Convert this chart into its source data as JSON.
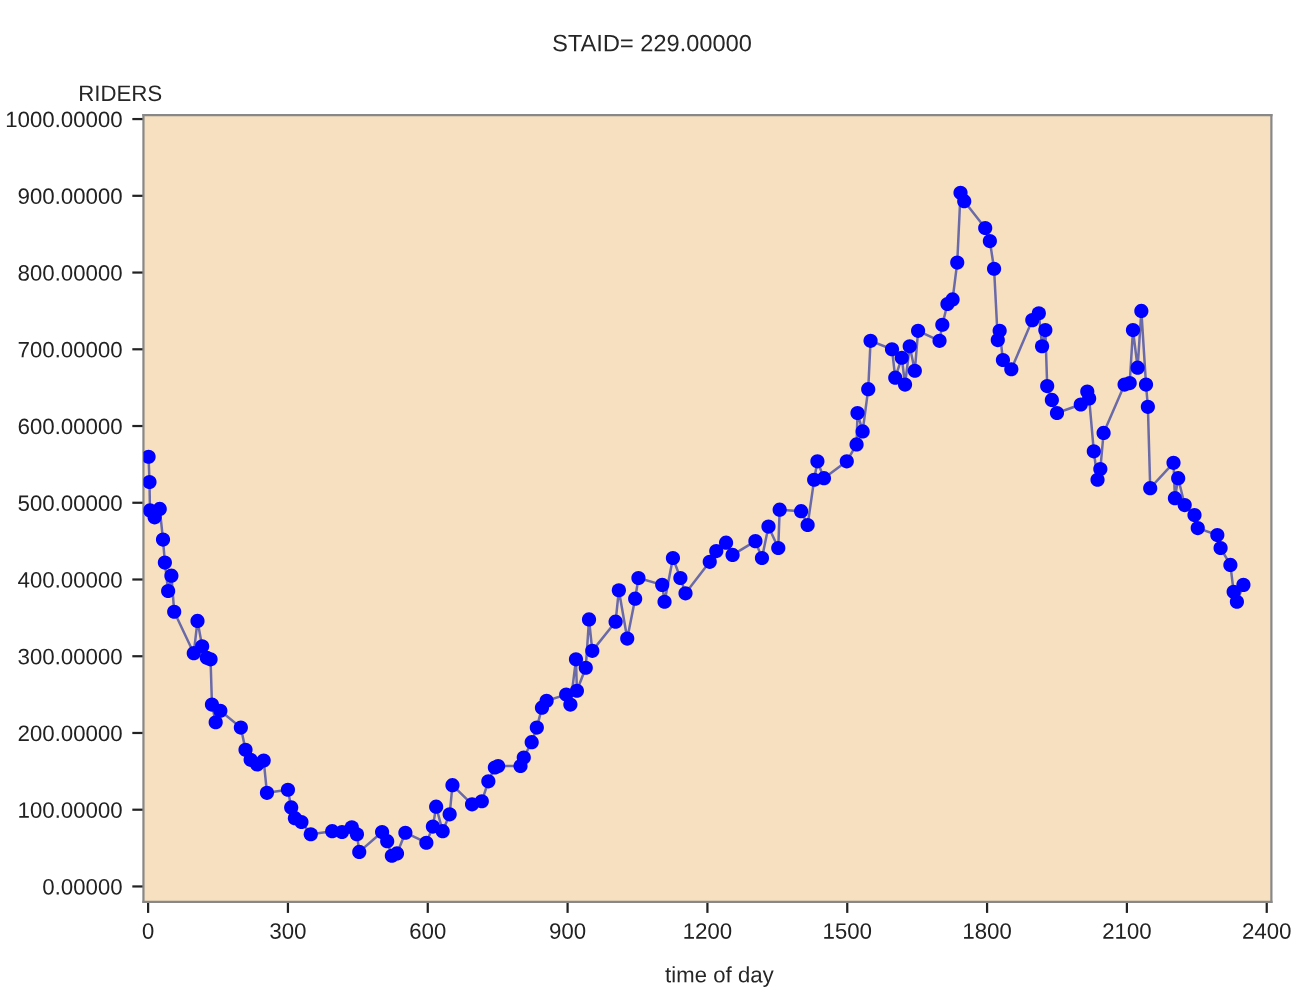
{
  "chart_data": {
    "type": "line",
    "title": "STAID= 229.00000",
    "xlabel": "time of day",
    "ylabel": "RIDERS",
    "marker": "circle",
    "line_style": "solid",
    "grid": false,
    "legend": false,
    "xlim": [
      -10,
      2410
    ],
    "ylim": [
      -20,
      1005
    ],
    "xticks": [
      0,
      300,
      600,
      900,
      1200,
      1500,
      1800,
      2100,
      2400
    ],
    "yticks": [
      {
        "value": 0,
        "label": "0.00000"
      },
      {
        "value": 100,
        "label": "100.00000"
      },
      {
        "value": 200,
        "label": "200.00000"
      },
      {
        "value": 300,
        "label": "300.00000"
      },
      {
        "value": 400,
        "label": "400.00000"
      },
      {
        "value": 500,
        "label": "500.00000"
      },
      {
        "value": 600,
        "label": "600.00000"
      },
      {
        "value": 700,
        "label": "700.00000"
      },
      {
        "value": 800,
        "label": "800.00000"
      },
      {
        "value": 900,
        "label": "900.00000"
      },
      {
        "value": 1000,
        "label": "1000.00000"
      }
    ],
    "series": [
      {
        "color": "#0000ff",
        "x": [
          1,
          3,
          4,
          14,
          25,
          32,
          36,
          43,
          50,
          56,
          98,
          106,
          116,
          126,
          134,
          137,
          145,
          155,
          199,
          209,
          220,
          234,
          248,
          255,
          300,
          307,
          315,
          329,
          349,
          395,
          416,
          437,
          448,
          453,
          502,
          513,
          523,
          534,
          552,
          597,
          611,
          618,
          632,
          647,
          653,
          695,
          716,
          730,
          744,
          751,
          799,
          806,
          823,
          834,
          845,
          855,
          897,
          906,
          918,
          920,
          939,
          946,
          953,
          1003,
          1010,
          1028,
          1045,
          1052,
          1103,
          1108,
          1126,
          1142,
          1153,
          1205,
          1219,
          1240,
          1254,
          1303,
          1317,
          1331,
          1352,
          1355,
          1401,
          1415,
          1429,
          1436,
          1450,
          1499,
          1520,
          1522,
          1533,
          1545,
          1550,
          1596,
          1603,
          1617,
          1624,
          1634,
          1645,
          1652,
          1698,
          1704,
          1715,
          1726,
          1736,
          1743,
          1751,
          1796,
          1806,
          1815,
          1823,
          1827,
          1834,
          1852,
          1897,
          1911,
          1918,
          1925,
          1929,
          1939,
          1950,
          2001,
          2015,
          2019,
          2029,
          2037,
          2043,
          2050,
          2095,
          2106,
          2113,
          2123,
          2131,
          2141,
          2145,
          2150,
          2200,
          2203,
          2210,
          2224,
          2245,
          2252,
          2294,
          2301,
          2322,
          2329,
          2336,
          2350
        ],
        "values": [
          560,
          527,
          490,
          481,
          492,
          452,
          422,
          385,
          405,
          358,
          304,
          346,
          313,
          298,
          296,
          237,
          214,
          229,
          207,
          178,
          165,
          159,
          164,
          122,
          126,
          103,
          89,
          84,
          68,
          72,
          71,
          77,
          68,
          45,
          71,
          59,
          40,
          43,
          70,
          57,
          78,
          104,
          72,
          94,
          132,
          107,
          111,
          137,
          155,
          157,
          157,
          168,
          188,
          207,
          233,
          242,
          250,
          237,
          296,
          255,
          285,
          348,
          307,
          345,
          386,
          323,
          375,
          402,
          393,
          371,
          428,
          402,
          382,
          423,
          437,
          448,
          432,
          450,
          428,
          469,
          441,
          491,
          489,
          471,
          530,
          554,
          532,
          554,
          576,
          617,
          593,
          648,
          711,
          700,
          663,
          689,
          654,
          704,
          672,
          724,
          711,
          732,
          759,
          765,
          813,
          904,
          893,
          858,
          841,
          805,
          712,
          724,
          686,
          674,
          738,
          747,
          704,
          725,
          652,
          634,
          617,
          628,
          645,
          636,
          567,
          530,
          544,
          591,
          654,
          656,
          725,
          676,
          750,
          654,
          625,
          519,
          552,
          506,
          532,
          497,
          484,
          467,
          458,
          441,
          419,
          384,
          371,
          393
        ]
      }
    ]
  }
}
